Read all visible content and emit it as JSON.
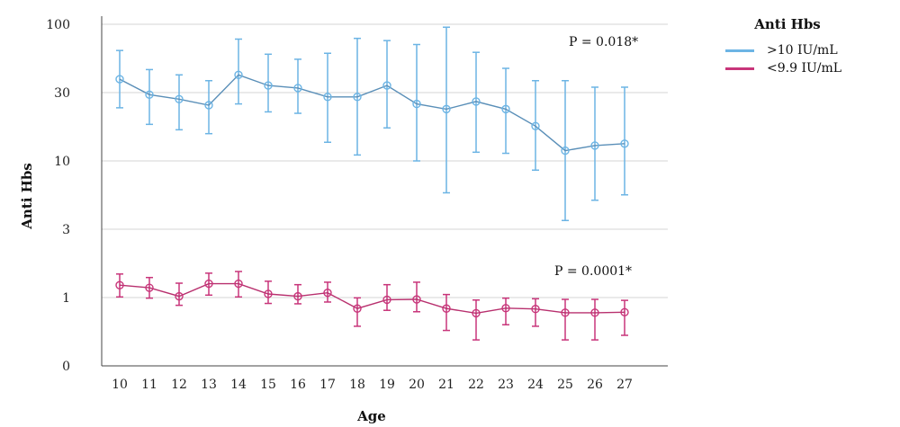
{
  "chart_data": {
    "type": "line",
    "xlabel": "Age",
    "ylabel": "Anti Hbs",
    "yscale": "log (0 at baseline)",
    "y_ticks": [
      0,
      1,
      3,
      10,
      30,
      100
    ],
    "y_tick_labels": [
      "0",
      "1",
      "3",
      "10",
      "30",
      "100"
    ],
    "x": [
      10,
      11,
      12,
      13,
      14,
      15,
      16,
      17,
      18,
      19,
      20,
      21,
      22,
      23,
      24,
      25,
      26,
      27
    ],
    "grid": "horizontal",
    "legend": {
      "title": "Anti Hbs",
      "placement": "right"
    },
    "series": [
      {
        "name": ">10 IU/mL",
        "color": "#6cb4e4",
        "line_color": "#5a8fb8",
        "mean": [
          38,
          29,
          27,
          24.5,
          41,
          34,
          32.5,
          28,
          28,
          34,
          25,
          23,
          26,
          23,
          17.5,
          11.8,
          12.8,
          13.2
        ],
        "lower": [
          23.5,
          18,
          16.5,
          15.5,
          25,
          22,
          21.5,
          13.5,
          11,
          17,
          10,
          5.7,
          11.5,
          11.3,
          8.5,
          3.5,
          5,
          5.5
        ],
        "upper": [
          63,
          45,
          41,
          37,
          77,
          59,
          54,
          60,
          78,
          75,
          70,
          95,
          61,
          46,
          37,
          37,
          33,
          33
        ],
        "annotation": "P = 0.018*"
      },
      {
        "name": "<9.9 IU/mL",
        "color": "#c8357a",
        "line_color": "#b8306e",
        "mean": [
          1.22,
          1.17,
          1.02,
          1.25,
          1.25,
          1.06,
          1.02,
          1.08,
          0.69,
          0.93,
          0.94,
          0.69,
          0.59,
          0.7,
          0.68,
          0.6,
          0.6,
          0.61
        ],
        "lower": [
          1.01,
          0.98,
          0.77,
          1.04,
          1.01,
          0.82,
          0.81,
          0.86,
          0.38,
          0.65,
          0.62,
          0.33,
          0.24,
          0.4,
          0.38,
          0.24,
          0.24,
          0.28
        ],
        "upper": [
          1.46,
          1.38,
          1.26,
          1.48,
          1.52,
          1.3,
          1.23,
          1.28,
          0.99,
          1.23,
          1.28,
          1.05,
          0.92,
          0.98,
          0.96,
          0.94,
          0.94,
          0.91
        ],
        "annotation": "P = 0.0001*"
      }
    ]
  }
}
